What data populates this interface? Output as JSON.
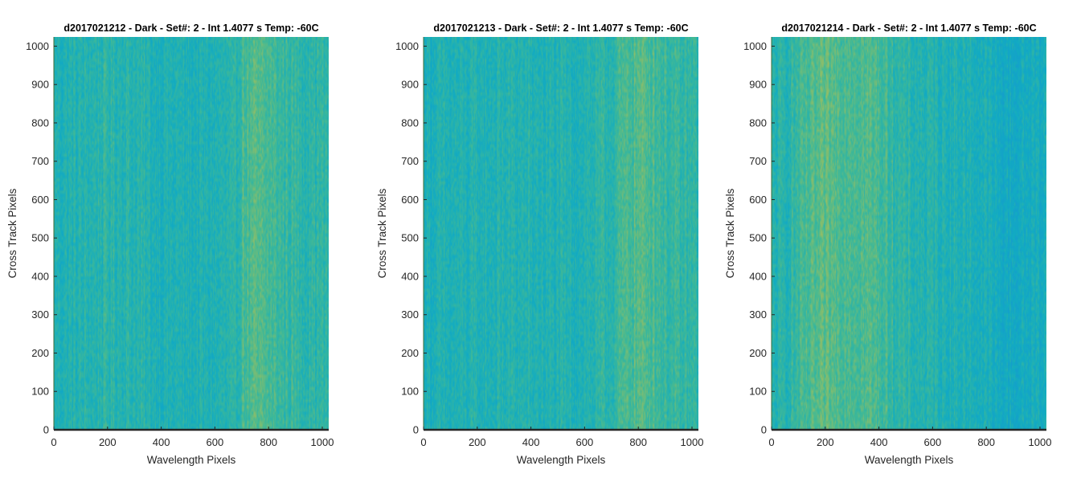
{
  "chart_data": [
    {
      "type": "heatmap",
      "title": "d2017021212 - Dark - Set#: 2 - Int 1.4077 s Temp: -60C",
      "xlabel": "Wavelength Pixels",
      "ylabel": "Cross Track Pixels",
      "xlim": [
        0,
        1024
      ],
      "ylim": [
        0,
        1024
      ],
      "xticks": [
        0,
        200,
        400,
        600,
        800,
        1000
      ],
      "yticks": [
        0,
        100,
        200,
        300,
        400,
        500,
        600,
        700,
        800,
        900,
        1000
      ],
      "colormap": "parula",
      "column_profile": {
        "x": [
          0,
          100,
          200,
          300,
          400,
          500,
          600,
          680,
          700,
          750,
          800,
          850,
          900,
          950,
          1024
        ],
        "level": [
          0.38,
          0.4,
          0.44,
          0.42,
          0.38,
          0.37,
          0.38,
          0.4,
          0.55,
          0.58,
          0.55,
          0.5,
          0.48,
          0.46,
          0.45
        ]
      }
    },
    {
      "type": "heatmap",
      "title": "d2017021213 - Dark - Set#: 2 - Int 1.4077 s Temp: -60C",
      "xlabel": "Wavelength Pixels",
      "ylabel": "Cross Track Pixels",
      "xlim": [
        0,
        1024
      ],
      "ylim": [
        0,
        1024
      ],
      "xticks": [
        0,
        200,
        400,
        600,
        800,
        1000
      ],
      "yticks": [
        0,
        100,
        200,
        300,
        400,
        500,
        600,
        700,
        800,
        900,
        1000
      ],
      "colormap": "parula",
      "column_profile": {
        "x": [
          0,
          100,
          200,
          300,
          400,
          500,
          600,
          700,
          750,
          800,
          850,
          900,
          950,
          1024
        ],
        "level": [
          0.36,
          0.37,
          0.38,
          0.4,
          0.39,
          0.38,
          0.4,
          0.45,
          0.55,
          0.6,
          0.58,
          0.5,
          0.47,
          0.45
        ]
      }
    },
    {
      "type": "heatmap",
      "title": "d2017021214 - Dark - Set#: 2 - Int 1.4077 s Temp: -60C",
      "xlabel": "Wavelength Pixels",
      "ylabel": "Cross Track Pixels",
      "xlim": [
        0,
        1024
      ],
      "ylim": [
        0,
        1024
      ],
      "xticks": [
        0,
        200,
        400,
        600,
        800,
        1000
      ],
      "yticks": [
        0,
        100,
        200,
        300,
        400,
        500,
        600,
        700,
        800,
        900,
        1000
      ],
      "colormap": "parula",
      "column_profile": {
        "x": [
          0,
          50,
          100,
          150,
          200,
          300,
          400,
          460,
          500,
          600,
          700,
          800,
          850,
          900,
          950,
          1024
        ],
        "level": [
          0.38,
          0.42,
          0.5,
          0.56,
          0.6,
          0.6,
          0.56,
          0.48,
          0.42,
          0.4,
          0.38,
          0.34,
          0.28,
          0.27,
          0.3,
          0.33
        ]
      }
    }
  ]
}
